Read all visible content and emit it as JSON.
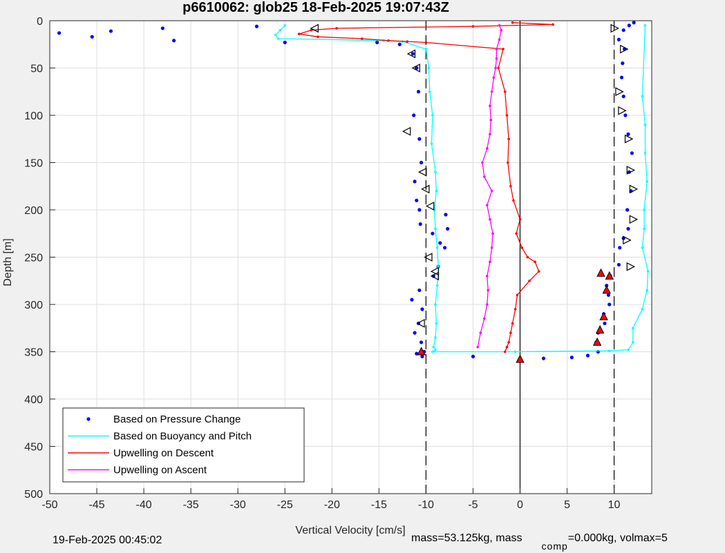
{
  "chart_data": {
    "type": "scatter",
    "title": "p6610062: glob25 18-Feb-2025 19:07:43Z",
    "xlabel": "Vertical Velocity [cm/s]",
    "ylabel": "Depth [m]",
    "xlim": [
      -50,
      14
    ],
    "ylim": [
      500,
      0
    ],
    "y_reversed": true,
    "grid": true,
    "xticks": [
      -50,
      -45,
      -40,
      -35,
      -30,
      -25,
      -20,
      -15,
      -10,
      -5,
      0,
      5,
      10
    ],
    "yticks": [
      0,
      50,
      100,
      150,
      200,
      250,
      300,
      350,
      400,
      450,
      500
    ],
    "reference_lines": [
      {
        "x": -10,
        "style": "dashed",
        "color": "#000000"
      },
      {
        "x": 0,
        "style": "solid",
        "color": "#000000"
      },
      {
        "x": 10,
        "style": "dashed",
        "color": "#000000"
      }
    ],
    "legend": {
      "position": "bottom-left",
      "entries": [
        {
          "label": "Based on Pressure Change",
          "color": "#0000ff",
          "marker": "dot"
        },
        {
          "label": "Based on Buoyancy and Pitch",
          "color": "#00ffff",
          "marker": "line"
        },
        {
          "label": "Upwelling on Descent",
          "color": "#ff0000",
          "marker": "line"
        },
        {
          "label": "Upwelling on Ascent",
          "color": "#ff00ff",
          "marker": "line"
        }
      ]
    },
    "series": [
      {
        "name": "Based on Pressure Change",
        "color": "#0000ff",
        "kind": "dots",
        "x": [
          -49,
          -45.5,
          -43.5,
          -38,
          -36.8,
          -28,
          -25,
          -15.2,
          -12.8,
          -11.4,
          -11.0,
          -10.8,
          -11.3,
          -10.7,
          -10.5,
          -11.2,
          -11.0,
          -10.7,
          -10.6,
          -9.3,
          -8.5,
          -8.0,
          -7.7,
          -7.9,
          -8.7,
          -9.2,
          -10.7,
          -11.5,
          -10.4,
          -10.8,
          -11.2,
          -10.5,
          -10.2,
          -11.0,
          -10.4,
          -5,
          0,
          2.5,
          5.5,
          7.2,
          8.3,
          8.1,
          8.3,
          9.0,
          8.9,
          9.5,
          9.4,
          9.2,
          9.6,
          10.5,
          10.6,
          11.0,
          11.5,
          11.4,
          11.8,
          11.6,
          11.9,
          11.5,
          11.2,
          11.0,
          10.8,
          10.9,
          11.1,
          10.5,
          11.0,
          11.6,
          12.1
        ],
        "y": [
          13,
          17,
          11,
          8,
          21,
          6,
          23,
          23,
          25,
          35,
          50,
          75,
          100,
          125,
          150,
          170,
          190,
          200,
          215,
          225,
          235,
          240,
          220,
          205,
          260,
          270,
          285,
          295,
          305,
          320,
          330,
          340,
          350,
          352,
          355,
          355,
          360,
          357,
          356,
          354,
          350,
          340,
          330,
          320,
          310,
          300,
          290,
          280,
          270,
          258,
          240,
          230,
          220,
          200,
          180,
          160,
          140,
          120,
          100,
          80,
          60,
          45,
          30,
          20,
          10,
          5,
          2
        ]
      },
      {
        "name": "Based on Buoyancy and Pitch",
        "color": "#00ffff",
        "kind": "line",
        "x": [
          -25,
          -25.5,
          -26,
          -25.7,
          -14.5,
          -12.5,
          -10.0,
          -9.7,
          -9.6,
          -9.3,
          -9.4,
          -9.0,
          -8.9,
          -9.1,
          -9.0,
          -8.8,
          -8.7,
          -8.8,
          -9.0,
          -8.9,
          -9.0,
          -9.2,
          -9.0,
          -9.3,
          -0.5,
          9.5,
          11.5,
          12.0,
          12.0,
          13.0,
          13.5,
          13.6,
          13.0,
          13.2,
          13.2,
          13.5,
          13.3,
          13.3,
          13.0,
          13.3
        ],
        "y": [
          5,
          10,
          15,
          19,
          21,
          22,
          30,
          50,
          75,
          100,
          130,
          160,
          180,
          200,
          220,
          240,
          260,
          280,
          300,
          320,
          335,
          345,
          348,
          350,
          350,
          349,
          348,
          340,
          325,
          305,
          285,
          265,
          240,
          220,
          200,
          170,
          140,
          110,
          80,
          5
        ]
      },
      {
        "name": "Upwelling on Descent",
        "color": "#ff0000",
        "kind": "line",
        "x": [
          -0.8,
          3.5,
          -5.0,
          -19.5,
          -22.2,
          -23.5,
          -21.5,
          -16.8,
          -14.0,
          -12.0,
          -10.0,
          -1.8,
          -2.3,
          -1.6,
          -1.4,
          -1.2,
          -1.3,
          -1.0,
          -0.7,
          0.0,
          -0.4,
          0.2,
          0.8,
          1.6,
          2.0,
          1.0,
          -0.3,
          -0.5,
          -0.8,
          -1.0,
          -1.2,
          -1.4,
          -1.6
        ],
        "y": [
          2,
          4,
          6,
          8,
          10,
          14,
          17,
          19,
          21,
          22,
          23,
          30,
          50,
          75,
          100,
          125,
          150,
          175,
          190,
          210,
          225,
          240,
          250,
          255,
          265,
          275,
          290,
          305,
          320,
          330,
          340,
          345,
          350
        ]
      },
      {
        "name": "Upwelling on Ascent",
        "color": "#ff00ff",
        "kind": "line",
        "x": [
          -4.5,
          -4.2,
          -3.8,
          -3.5,
          -3.4,
          -3.5,
          -3.2,
          -3.0,
          -2.9,
          -3.2,
          -3.5,
          -3.0,
          -3.8,
          -4.0,
          -3.5,
          -3.2,
          -3.1,
          -3.2,
          -3.0,
          -2.8,
          -2.6,
          -2.5,
          -2.5,
          -2.2,
          -2.0,
          -2.2
        ],
        "y": [
          345,
          330,
          315,
          300,
          285,
          270,
          255,
          240,
          225,
          210,
          195,
          180,
          165,
          150,
          135,
          120,
          105,
          90,
          75,
          60,
          50,
          40,
          30,
          20,
          10,
          5
        ]
      },
      {
        "name": "",
        "color": "#000000",
        "kind": "open-triangles",
        "x": [
          -21.8,
          -11.5,
          -11.0,
          -12.0,
          -10.3,
          -10.0,
          -9.5,
          -9.7,
          -9.0,
          -9.0,
          -10.5,
          10.0,
          11.0,
          10.5,
          10.8,
          11.5,
          11.7,
          12.0,
          12.0,
          11.3,
          11.7
        ],
        "y": [
          8,
          35,
          50,
          117,
          160,
          178,
          196,
          250,
          265,
          270,
          320,
          8,
          30,
          75,
          95,
          125,
          158,
          178,
          210,
          232,
          260
        ]
      },
      {
        "name": "",
        "color": "#ff0000",
        "kind": "filled-triangles",
        "x": [
          -10.5,
          0.0,
          8.2,
          8.5,
          8.9,
          9.2,
          9.5,
          8.6
        ],
        "y": [
          350,
          358,
          340,
          327,
          313,
          285,
          270,
          267
        ]
      }
    ]
  },
  "footer": {
    "timestamp": "19-Feb-2025 00:45:02",
    "mass_text": "mass=53.125kg, mass",
    "comp_subscript": "comp",
    "volmax_text": "=0.000kg, volmax=5"
  }
}
